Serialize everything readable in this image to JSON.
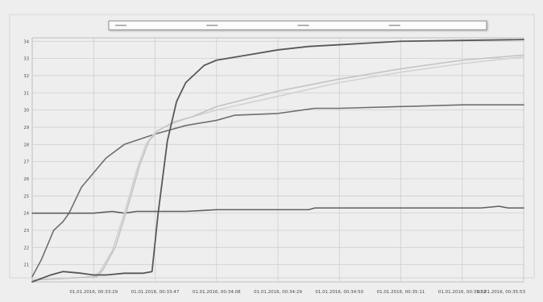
{
  "chart_data": {
    "type": "line",
    "title": "",
    "xlabel": "",
    "ylabel": "",
    "grid": true,
    "legend_position": "top-center",
    "xlim": [
      0,
      8
    ],
    "ylim": [
      20,
      34.2
    ],
    "x_ticks": [
      "01.01.2016, 00:33:29",
      "01.01.2016, 00:33:47",
      "01.01.2016, 00:34:08",
      "01.01.2016, 00:34:29",
      "01.01.2016, 00:34:50",
      "01.01.2016, 00:35:11",
      "01.01.2016, 00:35:32",
      "01.01.2016, 00:35:53"
    ],
    "y_ticks": [
      "21",
      "22",
      "23",
      "24",
      "25",
      "26",
      "27",
      "28",
      "29",
      "30",
      "31",
      "32",
      "33",
      "34"
    ],
    "legend": [
      {
        "label": "",
        "color": "#9a9a9a"
      },
      {
        "label": "",
        "color": "#9a9a9a"
      },
      {
        "label": "",
        "color": "#9a9a9a"
      },
      {
        "label": "",
        "color": "#9a9a9a"
      }
    ],
    "series": [
      {
        "color": "#6f6f6f",
        "points": [
          [
            0,
            20.3
          ],
          [
            0.15,
            21.3
          ],
          [
            0.35,
            23.0
          ],
          [
            0.5,
            23.5
          ],
          [
            0.6,
            24.0
          ],
          [
            0.8,
            25.5
          ],
          [
            1.2,
            27.2
          ],
          [
            1.5,
            28.0
          ],
          [
            2.0,
            28.6
          ],
          [
            2.5,
            29.1
          ],
          [
            3.0,
            29.4
          ],
          [
            3.3,
            29.7
          ],
          [
            4.0,
            29.8
          ],
          [
            4.6,
            30.1
          ],
          [
            5.0,
            30.1
          ],
          [
            6.0,
            30.2
          ],
          [
            7.0,
            30.3
          ],
          [
            8.0,
            30.3
          ]
        ]
      },
      {
        "color": "#5f5f5f",
        "points": [
          [
            0,
            24.0
          ],
          [
            1.0,
            24.0
          ],
          [
            1.3,
            24.1
          ],
          [
            1.5,
            24.0
          ],
          [
            1.7,
            24.1
          ],
          [
            2.0,
            24.1
          ],
          [
            2.5,
            24.1
          ],
          [
            3.0,
            24.2
          ],
          [
            4.5,
            24.2
          ],
          [
            4.6,
            24.3
          ],
          [
            5.5,
            24.3
          ],
          [
            7.3,
            24.3
          ],
          [
            7.6,
            24.4
          ],
          [
            7.75,
            24.3
          ],
          [
            8.0,
            24.3
          ]
        ]
      },
      {
        "color": "#d2d2d2",
        "points": [
          [
            0,
            20.1
          ],
          [
            1.0,
            20.3
          ],
          [
            1.1,
            20.6
          ],
          [
            1.3,
            21.8
          ],
          [
            1.5,
            24.0
          ],
          [
            1.7,
            26.5
          ],
          [
            1.85,
            28.0
          ],
          [
            2.0,
            28.7
          ],
          [
            2.2,
            29.1
          ],
          [
            2.5,
            29.5
          ],
          [
            3.0,
            30.0
          ],
          [
            4.0,
            30.8
          ],
          [
            5.0,
            31.6
          ],
          [
            6.0,
            32.2
          ],
          [
            7.0,
            32.7
          ],
          [
            8.0,
            33.1
          ]
        ]
      },
      {
        "color": "#c4c4c4",
        "points": [
          [
            0,
            20.1
          ],
          [
            1.05,
            20.3
          ],
          [
            1.15,
            20.7
          ],
          [
            1.35,
            22.0
          ],
          [
            1.55,
            24.3
          ],
          [
            1.75,
            26.8
          ],
          [
            1.9,
            28.2
          ],
          [
            2.05,
            28.8
          ],
          [
            2.3,
            29.3
          ],
          [
            2.6,
            29.6
          ],
          [
            3.0,
            30.2
          ],
          [
            4.0,
            31.1
          ],
          [
            5.0,
            31.8
          ],
          [
            6.0,
            32.4
          ],
          [
            7.0,
            32.9
          ],
          [
            8.0,
            33.2
          ]
        ]
      },
      {
        "color": "#585858",
        "points": [
          [
            0,
            20.0
          ],
          [
            0.3,
            20.4
          ],
          [
            0.5,
            20.6
          ],
          [
            0.8,
            20.5
          ],
          [
            1.0,
            20.4
          ],
          [
            1.2,
            20.4
          ],
          [
            1.5,
            20.5
          ],
          [
            1.8,
            20.5
          ],
          [
            1.95,
            20.6
          ],
          [
            2.05,
            24.0
          ],
          [
            2.2,
            28.2
          ],
          [
            2.35,
            30.5
          ],
          [
            2.5,
            31.6
          ],
          [
            2.8,
            32.6
          ],
          [
            3.0,
            32.9
          ],
          [
            3.5,
            33.2
          ],
          [
            4.0,
            33.5
          ],
          [
            4.5,
            33.7
          ],
          [
            5.0,
            33.8
          ],
          [
            5.5,
            33.9
          ],
          [
            6.0,
            34.0
          ],
          [
            7.0,
            34.05
          ],
          [
            8.0,
            34.1
          ]
        ]
      }
    ]
  }
}
